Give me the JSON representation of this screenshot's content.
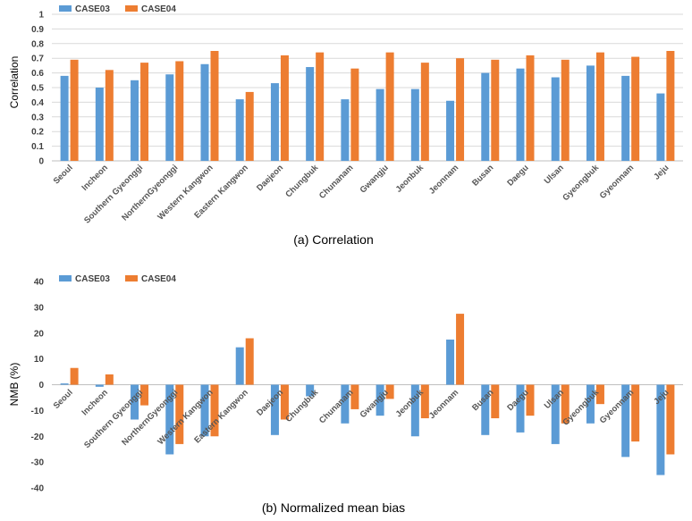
{
  "colors": {
    "case03": "#5b9bd5",
    "case04": "#ed7d31",
    "grid": "#d9d9d9",
    "axis": "#bfbfbf"
  },
  "chart_data": [
    {
      "type": "bar",
      "title": "",
      "caption": "(a) Correlation",
      "xlabel": "",
      "ylabel": "Correlation",
      "ylim": [
        0,
        1
      ],
      "ytick_step": 0.1,
      "yticks": [
        "0",
        "0.1",
        "0.2",
        "0.3",
        "0.4",
        "0.5",
        "0.6",
        "0.7",
        "0.8",
        "0.9",
        "1"
      ],
      "grid": true,
      "legend": "top-left",
      "categories": [
        "Seoul",
        "Incheon",
        "Southern Gyeonggi",
        "NorthernGyeonggi",
        "Western Kangwon",
        "Eastern Kangwon",
        "Daejeon",
        "Chungbuk",
        "Chunanam",
        "Gwangju",
        "Jeonbuk",
        "Jeonnam",
        "Busan",
        "Daegu",
        "Ulsan",
        "Gyeongbuk",
        "Gyeonnam",
        "Jeju"
      ],
      "series": [
        {
          "name": "CASE03",
          "values": [
            0.58,
            0.5,
            0.55,
            0.59,
            0.66,
            0.42,
            0.53,
            0.64,
            0.42,
            0.49,
            0.49,
            0.41,
            0.6,
            0.63,
            0.57,
            0.65,
            0.58,
            0.46
          ]
        },
        {
          "name": "CASE04",
          "values": [
            0.69,
            0.62,
            0.67,
            0.68,
            0.75,
            0.47,
            0.72,
            0.74,
            0.63,
            0.74,
            0.67,
            0.7,
            0.69,
            0.72,
            0.69,
            0.74,
            0.71,
            0.75
          ]
        }
      ]
    },
    {
      "type": "bar",
      "title": "",
      "caption": "(b) Normalized mean bias",
      "xlabel": "",
      "ylabel": "NMB (%)",
      "ylim": [
        -40,
        40
      ],
      "ytick_step": 10,
      "yticks": [
        "-40",
        "-30",
        "-20",
        "-10",
        "0",
        "10",
        "20",
        "30",
        "40"
      ],
      "grid": false,
      "legend": "top-left",
      "categories": [
        "Seoul",
        "Incheon",
        "Southern Gyeonggi",
        "NorthernGyeonggi",
        "Western Kangwon",
        "Eastern Kangwon",
        "Daejeon",
        "Chungbuk",
        "Chunanam",
        "Gwangju",
        "Jeonbuk",
        "Jeonnam",
        "Busan",
        "Daegu",
        "Ulsan",
        "Gyeongbuk",
        "Gyeonnam",
        "Jeju"
      ],
      "series": [
        {
          "name": "CASE03",
          "values": [
            0.5,
            -0.8,
            -13.5,
            -27,
            -20,
            14.5,
            -19.5,
            -4.5,
            -15,
            -12,
            -20,
            17.5,
            -19.5,
            -18.5,
            -23,
            -15,
            -28,
            -35
          ]
        },
        {
          "name": "CASE04",
          "values": [
            6.5,
            4,
            -8,
            -23,
            -20,
            18,
            -13.5,
            0,
            -9.5,
            -5.5,
            -13,
            27.5,
            -13,
            -12,
            -15,
            -7.5,
            -22,
            -27
          ]
        }
      ]
    }
  ]
}
